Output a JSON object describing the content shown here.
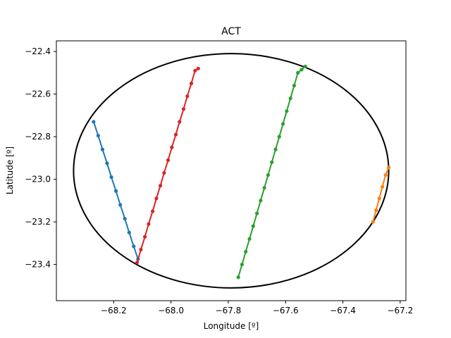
{
  "chart_data": {
    "type": "line",
    "title": "ACT",
    "xlabel": "Longitude [º]",
    "ylabel": "Latitude [º]",
    "xlim": [
      -68.4,
      -67.18
    ],
    "ylim": [
      -23.57,
      -22.35
    ],
    "xticks": [
      -68.2,
      -68.0,
      -67.8,
      -67.6,
      -67.4,
      -67.2
    ],
    "xtick_labels": [
      "−68.2",
      "−68.0",
      "−67.8",
      "−67.6",
      "−67.4",
      "−67.2"
    ],
    "yticks": [
      -23.4,
      -23.2,
      -23.0,
      -22.8,
      -22.6,
      -22.4
    ],
    "ytick_labels": [
      "−23.4",
      "−23.2",
      "−23.0",
      "−22.8",
      "−22.6",
      "−22.4"
    ],
    "grid": false,
    "ellipse": {
      "center": [
        -67.79,
        -22.96
      ],
      "x_semi_axis": 0.55,
      "y_semi_axis": 0.55,
      "color": "#000000"
    },
    "series": [
      {
        "color": "#1f77b4",
        "x": [
          -68.27,
          -68.254,
          -68.239,
          -68.223,
          -68.208,
          -68.192,
          -68.177,
          -68.161,
          -68.146,
          -68.13,
          -68.115
        ],
        "y": [
          -22.73,
          -22.795,
          -22.86,
          -22.925,
          -22.99,
          -23.055,
          -23.12,
          -23.185,
          -23.25,
          -23.315,
          -23.375
        ]
      },
      {
        "color": "#d62728",
        "x": [
          -68.118,
          -68.105,
          -68.091,
          -68.078,
          -68.064,
          -68.051,
          -68.037,
          -68.024,
          -68.01,
          -67.997,
          -67.983,
          -67.97,
          -67.956,
          -67.943,
          -67.929,
          -67.916,
          -67.905
        ],
        "y": [
          -23.39,
          -23.33,
          -23.27,
          -23.21,
          -23.15,
          -23.09,
          -23.03,
          -22.97,
          -22.91,
          -22.85,
          -22.79,
          -22.73,
          -22.67,
          -22.61,
          -22.55,
          -22.49,
          -22.48
        ]
      },
      {
        "color": "#2ca02c",
        "x": [
          -67.765,
          -67.752,
          -67.739,
          -67.726,
          -67.713,
          -67.7,
          -67.687,
          -67.674,
          -67.661,
          -67.648,
          -67.635,
          -67.622,
          -67.609,
          -67.596,
          -67.583,
          -67.57,
          -67.557,
          -67.544,
          -67.531
        ],
        "y": [
          -23.46,
          -23.4,
          -23.34,
          -23.28,
          -23.22,
          -23.16,
          -23.1,
          -23.04,
          -22.98,
          -22.92,
          -22.86,
          -22.8,
          -22.74,
          -22.68,
          -22.62,
          -22.56,
          -22.5,
          -22.485,
          -22.47
        ]
      },
      {
        "color": "#ff7f0e",
        "x": [
          -67.295,
          -67.284,
          -67.273,
          -67.262,
          -67.251,
          -67.24
        ],
        "y": [
          -23.2,
          -23.145,
          -23.09,
          -23.035,
          -22.98,
          -22.945
        ]
      }
    ]
  }
}
